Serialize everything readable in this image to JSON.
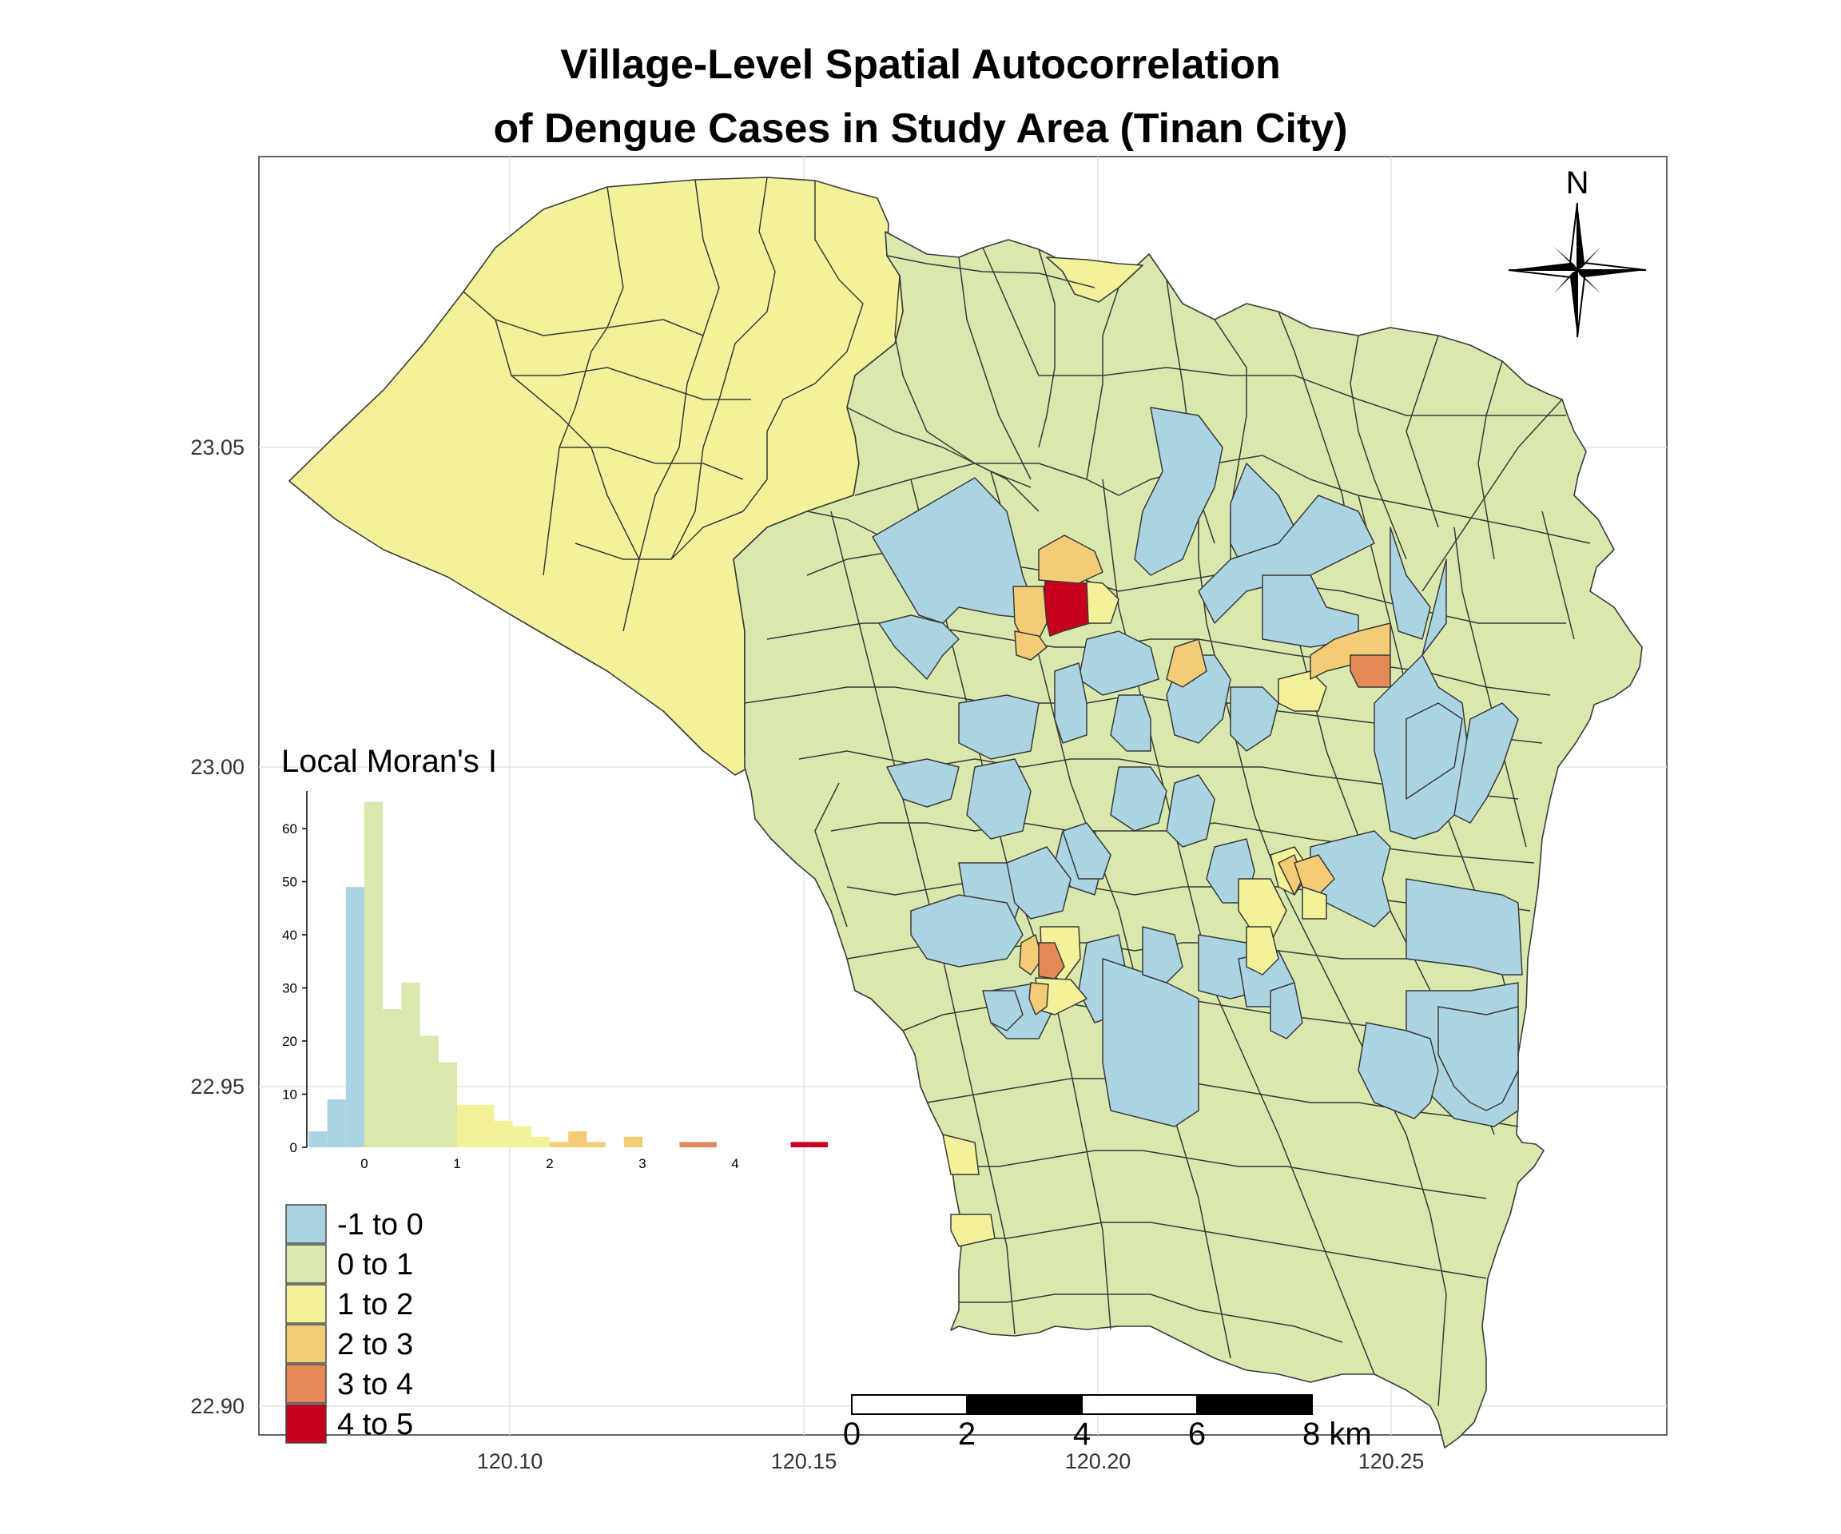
{
  "title_line1": "Village-Level Spatial Autocorrelation",
  "title_line2": "of Dengue Cases in Study Area (Tinan City)",
  "axes": {
    "y_ticks": [
      "23.05",
      "23.00",
      "22.95",
      "22.90"
    ],
    "x_ticks": [
      "120.10",
      "120.15",
      "120.20",
      "120.25"
    ]
  },
  "north_label": "N",
  "histogram": {
    "title": "Local Moran's I",
    "y_ticks": [
      "0",
      "10",
      "20",
      "30",
      "40",
      "50",
      "60"
    ],
    "x_ticks": [
      "0",
      "1",
      "2",
      "3",
      "4"
    ]
  },
  "legend": {
    "items": [
      {
        "label": "-1 to 0",
        "color": "#abd4e3"
      },
      {
        "label": "0 to 1",
        "color": "#d9e8ac"
      },
      {
        "label": "1 to 2",
        "color": "#f3f29a"
      },
      {
        "label": "2 to 3",
        "color": "#f3cc75"
      },
      {
        "label": "3 to 4",
        "color": "#e38a57"
      },
      {
        "label": "4 to 5",
        "color": "#c8001e"
      }
    ]
  },
  "scalebar": {
    "labels": [
      "0",
      "2",
      "4",
      "6",
      "8 km"
    ]
  },
  "chart_data": {
    "type": "bar",
    "title": "Local Moran's I",
    "xlabel": "",
    "ylabel": "",
    "ylim": [
      0,
      68
    ],
    "bin_width": 0.2,
    "bins": [
      {
        "x0": -0.6,
        "x1": -0.4,
        "count": 3,
        "class": "-1 to 0"
      },
      {
        "x0": -0.4,
        "x1": -0.2,
        "count": 9,
        "class": "-1 to 0"
      },
      {
        "x0": -0.2,
        "x1": 0.0,
        "count": 49,
        "class": "-1 to 0"
      },
      {
        "x0": 0.0,
        "x1": 0.2,
        "count": 65,
        "class": "0 to 1"
      },
      {
        "x0": 0.2,
        "x1": 0.4,
        "count": 26,
        "class": "0 to 1"
      },
      {
        "x0": 0.4,
        "x1": 0.6,
        "count": 31,
        "class": "0 to 1"
      },
      {
        "x0": 0.6,
        "x1": 0.8,
        "count": 21,
        "class": "0 to 1"
      },
      {
        "x0": 0.8,
        "x1": 1.0,
        "count": 16,
        "class": "0 to 1"
      },
      {
        "x0": 1.0,
        "x1": 1.2,
        "count": 8,
        "class": "1 to 2"
      },
      {
        "x0": 1.2,
        "x1": 1.4,
        "count": 8,
        "class": "1 to 2"
      },
      {
        "x0": 1.4,
        "x1": 1.6,
        "count": 5,
        "class": "1 to 2"
      },
      {
        "x0": 1.6,
        "x1": 1.8,
        "count": 4,
        "class": "1 to 2"
      },
      {
        "x0": 1.8,
        "x1": 2.0,
        "count": 2,
        "class": "1 to 2"
      },
      {
        "x0": 2.0,
        "x1": 2.2,
        "count": 1,
        "class": "2 to 3"
      },
      {
        "x0": 2.2,
        "x1": 2.4,
        "count": 3,
        "class": "2 to 3"
      },
      {
        "x0": 2.4,
        "x1": 2.6,
        "count": 1,
        "class": "2 to 3"
      },
      {
        "x0": 2.8,
        "x1": 3.0,
        "count": 2,
        "class": "2 to 3"
      },
      {
        "x0": 3.4,
        "x1": 3.6,
        "count": 1,
        "class": "3 to 4"
      },
      {
        "x0": 3.6,
        "x1": 3.8,
        "count": 1,
        "class": "3 to 4"
      },
      {
        "x0": 4.6,
        "x1": 4.8,
        "count": 1,
        "class": "4 to 5"
      },
      {
        "x0": 4.8,
        "x1": 5.0,
        "count": 1,
        "class": "4 to 5"
      }
    ]
  }
}
